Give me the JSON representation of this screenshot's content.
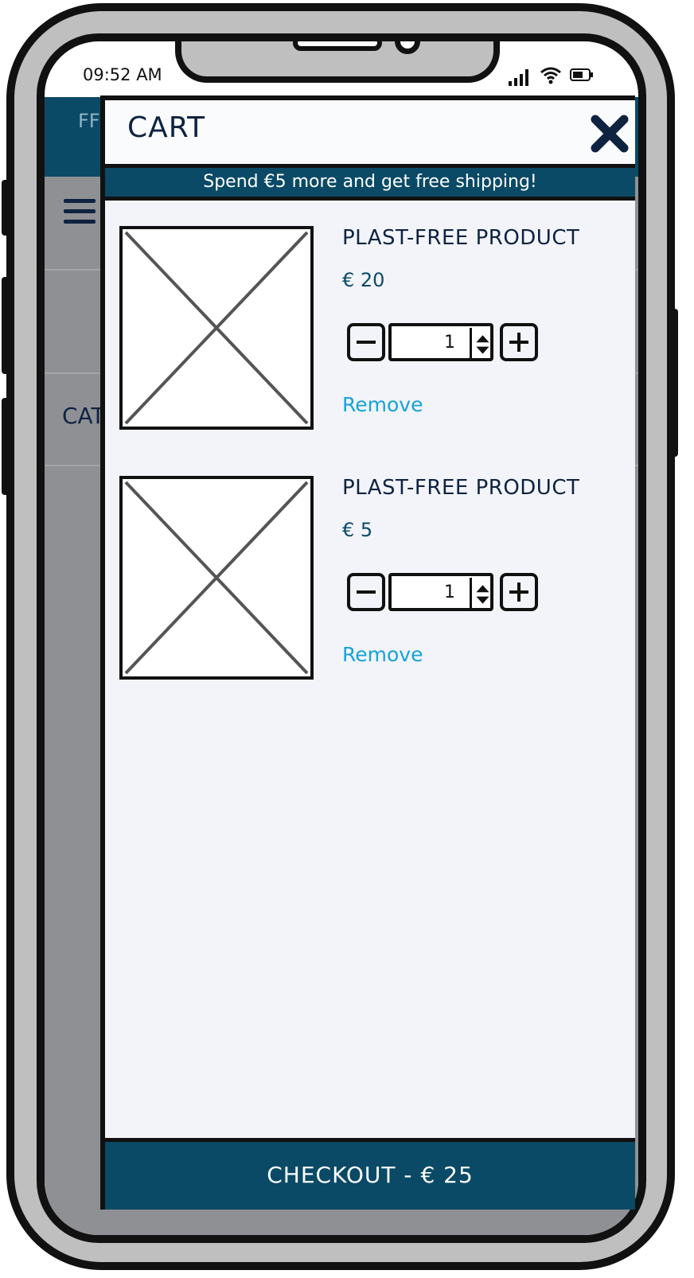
{
  "status_bar": {
    "time": "09:52 AM"
  },
  "background_app": {
    "brand": "FF",
    "category_label": "CAT"
  },
  "cart": {
    "title": "CART",
    "shipping_banner": "Spend €5 more and get free shipping!",
    "items": [
      {
        "name": "PLAST-FREE PRODUCT",
        "price": "€ 20",
        "quantity": "1",
        "remove_label": "Remove"
      },
      {
        "name": "PLAST-FREE PRODUCT",
        "price": "€ 5",
        "quantity": "1",
        "remove_label": "Remove"
      }
    ],
    "checkout_label": "CHECKOUT - € 25"
  },
  "icons": [
    "close-icon",
    "minus-icon",
    "plus-icon",
    "spinner-icon",
    "image-placeholder-icon",
    "menu-icon",
    "signal-icon",
    "wifi-icon",
    "battery-icon"
  ],
  "colors": {
    "primary": "#0b4a66",
    "text": "#0e2340",
    "link": "#16a3d6",
    "panel": "#f2f4f9"
  }
}
